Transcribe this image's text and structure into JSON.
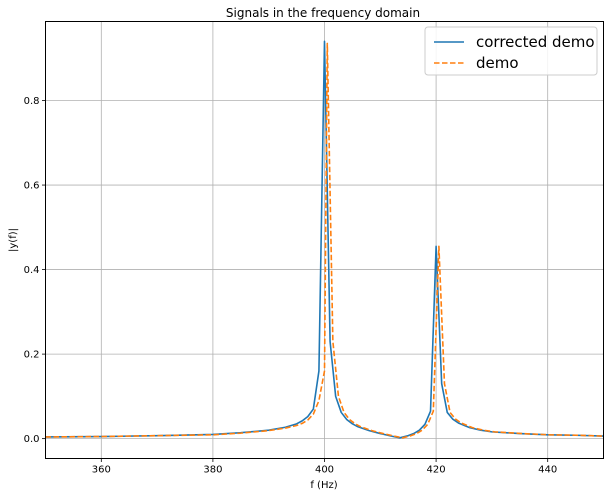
{
  "chart_data": {
    "type": "line",
    "title": "Signals in the frequency domain",
    "xlabel": "f (Hz)",
    "ylabel": "|y(f)|",
    "xlim": [
      350,
      450
    ],
    "ylim": [
      -0.047,
      0.987
    ],
    "xticks": [
      360,
      380,
      400,
      420,
      440
    ],
    "yticks": [
      0.0,
      0.2,
      0.4,
      0.6,
      0.8
    ],
    "xtick_labels": [
      "360",
      "380",
      "400",
      "420",
      "440"
    ],
    "ytick_labels": [
      "0.0",
      "0.2",
      "0.4",
      "0.6",
      "0.8"
    ],
    "grid": true,
    "legend": {
      "placement": "top-right",
      "entries": [
        "corrected demo",
        "demo"
      ]
    },
    "series": [
      {
        "name": "corrected demo",
        "color": "#1f77b4",
        "style": "solid",
        "x": [
          350,
          360,
          370,
          380,
          385,
          390,
          393,
          395,
          396,
          397,
          398,
          399,
          400,
          401,
          402,
          403,
          404,
          405,
          406,
          408,
          410,
          412,
          413.5,
          415,
          416,
          417,
          418,
          419,
          420,
          421,
          422,
          423,
          424,
          426,
          428,
          430,
          435,
          440,
          445,
          450
        ],
        "y": [
          0.004,
          0.005,
          0.007,
          0.01,
          0.014,
          0.02,
          0.027,
          0.035,
          0.042,
          0.052,
          0.07,
          0.16,
          0.94,
          0.23,
          0.1,
          0.062,
          0.045,
          0.035,
          0.028,
          0.019,
          0.012,
          0.006,
          0.002,
          0.007,
          0.012,
          0.02,
          0.034,
          0.065,
          0.455,
          0.13,
          0.062,
          0.046,
          0.037,
          0.026,
          0.02,
          0.016,
          0.012,
          0.009,
          0.008,
          0.006
        ]
      },
      {
        "name": "demo",
        "color": "#ff7f0e",
        "style": "dashed",
        "x": [
          350,
          360,
          370,
          380,
          385,
          390,
          393,
          395,
          396,
          397,
          398,
          399,
          400,
          400.5,
          401.5,
          402.5,
          403.5,
          404.5,
          405.5,
          406.5,
          408.5,
          410.5,
          412.5,
          414,
          415.5,
          416.5,
          417.5,
          418.5,
          419.5,
          420.5,
          421.5,
          422.5,
          423.5,
          424.5,
          426.5,
          428.5,
          430.5,
          435.5,
          440.5,
          445.5,
          450
        ],
        "y": [
          0.004,
          0.005,
          0.007,
          0.009,
          0.013,
          0.019,
          0.025,
          0.031,
          0.036,
          0.044,
          0.058,
          0.09,
          0.16,
          0.935,
          0.23,
          0.1,
          0.062,
          0.045,
          0.035,
          0.028,
          0.019,
          0.012,
          0.006,
          0.002,
          0.007,
          0.012,
          0.02,
          0.034,
          0.065,
          0.455,
          0.13,
          0.062,
          0.046,
          0.037,
          0.026,
          0.02,
          0.016,
          0.012,
          0.009,
          0.008,
          0.006
        ]
      }
    ]
  }
}
